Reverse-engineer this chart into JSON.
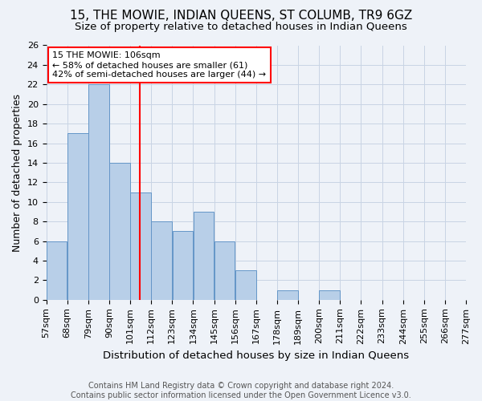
{
  "title": "15, THE MOWIE, INDIAN QUEENS, ST COLUMB, TR9 6GZ",
  "subtitle": "Size of property relative to detached houses in Indian Queens",
  "xlabel": "Distribution of detached houses by size in Indian Queens",
  "ylabel": "Number of detached properties",
  "bar_edges": [
    57,
    68,
    79,
    90,
    101,
    112,
    123,
    134,
    145,
    156,
    167,
    178,
    189,
    200,
    211,
    222,
    233,
    244,
    255,
    266,
    277
  ],
  "bar_values": [
    6,
    17,
    22,
    14,
    11,
    8,
    7,
    9,
    6,
    3,
    0,
    1,
    0,
    1,
    0,
    0,
    0,
    0,
    0,
    0
  ],
  "bar_color": "#b8cfe8",
  "bar_edge_color": "#6496c8",
  "grid_color": "#c8d4e4",
  "bg_color": "#eef2f8",
  "property_line_x": 106,
  "annotation_text": "15 THE MOWIE: 106sqm\n← 58% of detached houses are smaller (61)\n42% of semi-detached houses are larger (44) →",
  "annotation_box_color": "white",
  "annotation_box_edge": "red",
  "ylim": [
    0,
    26
  ],
  "yticks": [
    0,
    2,
    4,
    6,
    8,
    10,
    12,
    14,
    16,
    18,
    20,
    22,
    24,
    26
  ],
  "footer": "Contains HM Land Registry data © Crown copyright and database right 2024.\nContains public sector information licensed under the Open Government Licence v3.0.",
  "title_fontsize": 11,
  "subtitle_fontsize": 9.5,
  "xlabel_fontsize": 9.5,
  "ylabel_fontsize": 9,
  "footer_fontsize": 7,
  "tick_fontsize": 8,
  "annot_fontsize": 8
}
